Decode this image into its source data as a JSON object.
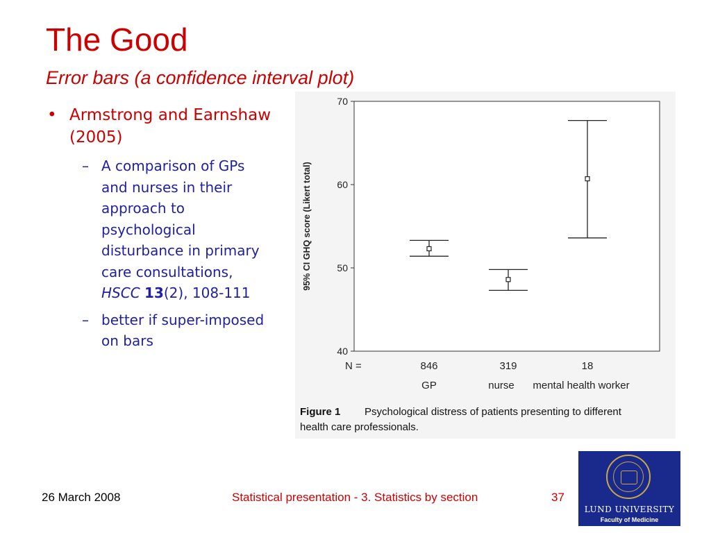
{
  "slide": {
    "title": "The Good",
    "subtitle": "Error bars (a confidence interval plot)"
  },
  "bullets": {
    "main": "Armstrong and Earnshaw (2005)",
    "sub1_text": "A comparison of GPs and nurses in their approach to psychological disturbance in primary care consultations,",
    "sub1_journal": "HSCC",
    "sub1_volume": "13",
    "sub1_issue": "(2),",
    "sub1_pages": "108-111",
    "sub2": "better if  super-imposed on bars"
  },
  "footer": {
    "date": "26 March 2008",
    "title": "Statistical presentation - 3. Statistics by section",
    "page": "37"
  },
  "logo": {
    "name": "Lund University",
    "sub": "Faculty of Medicine"
  },
  "colors": {
    "title": "#cc0000",
    "body": "#1f1fa0",
    "logo_bg": "#1a2a8c"
  },
  "chart_data": {
    "type": "errorbar",
    "ylabel": "95% CI GHQ score (Likert total)",
    "ylim": [
      40,
      70
    ],
    "yticks": [
      40,
      50,
      60,
      70
    ],
    "n_label": "N =",
    "groups": [
      {
        "category": "GP",
        "n": "846",
        "mean": 52.3,
        "lower": 51.4,
        "upper": 53.3
      },
      {
        "category": "nurse",
        "n": "319",
        "mean": 48.6,
        "lower": 47.3,
        "upper": 49.8
      },
      {
        "category": "mental health worker",
        "n": "18",
        "mean": 60.7,
        "lower": 53.6,
        "upper": 67.7
      }
    ],
    "caption_label": "Figure 1",
    "caption_text": "Psychological distress of patients presenting to different health care professionals."
  }
}
